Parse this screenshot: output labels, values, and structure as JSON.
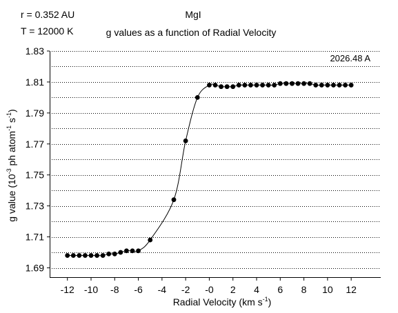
{
  "header": {
    "left_line1": "r = 0.352 AU",
    "left_line2": "T = 12000 K",
    "species": "MgI",
    "title": "g values as a function of Radial Velocity"
  },
  "chart_data": {
    "type": "line",
    "title": "g values as a function of Radial Velocity",
    "annotation": "2026.48 A",
    "xlabel": "Radial Velocity (km s",
    "xlabel_sup": "-1",
    "xlabel_end": ")",
    "ylabel": {
      "pre": "g value (10",
      "sup1": "-3",
      "mid": " ph atom",
      "sup2": "-1",
      "mid2": " s",
      "sup3": "-1",
      "end": ")"
    },
    "xlim": [
      -13.5,
      14.5
    ],
    "ylim": [
      1.684,
      1.83
    ],
    "xticks": [
      -12,
      -10,
      -8,
      -6,
      -4,
      -2,
      0,
      2,
      4,
      6,
      8,
      10,
      12
    ],
    "xtick_labels": [
      "-12",
      "-10",
      "-8",
      "-6",
      "-4",
      "-2",
      "-0",
      "2",
      "4",
      "6",
      "8",
      "10",
      "12"
    ],
    "yticks": [
      1.69,
      1.71,
      1.73,
      1.75,
      1.77,
      1.79,
      1.81,
      1.83
    ],
    "ytick_labels": [
      "1.69",
      "1.71",
      "1.73",
      "1.75",
      "1.77",
      "1.79",
      "1.81",
      "1.83"
    ],
    "grid": "horizontal dotted",
    "series": [
      {
        "x": [
          -12,
          -11.5,
          -11,
          -10.5,
          -10,
          -9.5,
          -9,
          -8.5,
          -8,
          -7.5,
          -7,
          -6.5,
          -6,
          -5,
          -3,
          -2,
          -1,
          0,
          0.5,
          1,
          1.5,
          2,
          2.5,
          3,
          3.5,
          4,
          4.5,
          5,
          5.5,
          6,
          6.5,
          7,
          7.5,
          8,
          8.5,
          9,
          9.5,
          10,
          10.5,
          11,
          11.5,
          12
        ],
        "y": [
          1.698,
          1.698,
          1.698,
          1.698,
          1.698,
          1.698,
          1.698,
          1.699,
          1.699,
          1.7,
          1.701,
          1.701,
          1.701,
          1.708,
          1.734,
          1.772,
          1.8,
          1.808,
          1.808,
          1.807,
          1.807,
          1.807,
          1.808,
          1.808,
          1.808,
          1.808,
          1.808,
          1.808,
          1.808,
          1.809,
          1.809,
          1.809,
          1.809,
          1.809,
          1.809,
          1.808,
          1.808,
          1.808,
          1.808,
          1.808,
          1.808,
          1.808
        ]
      }
    ]
  }
}
